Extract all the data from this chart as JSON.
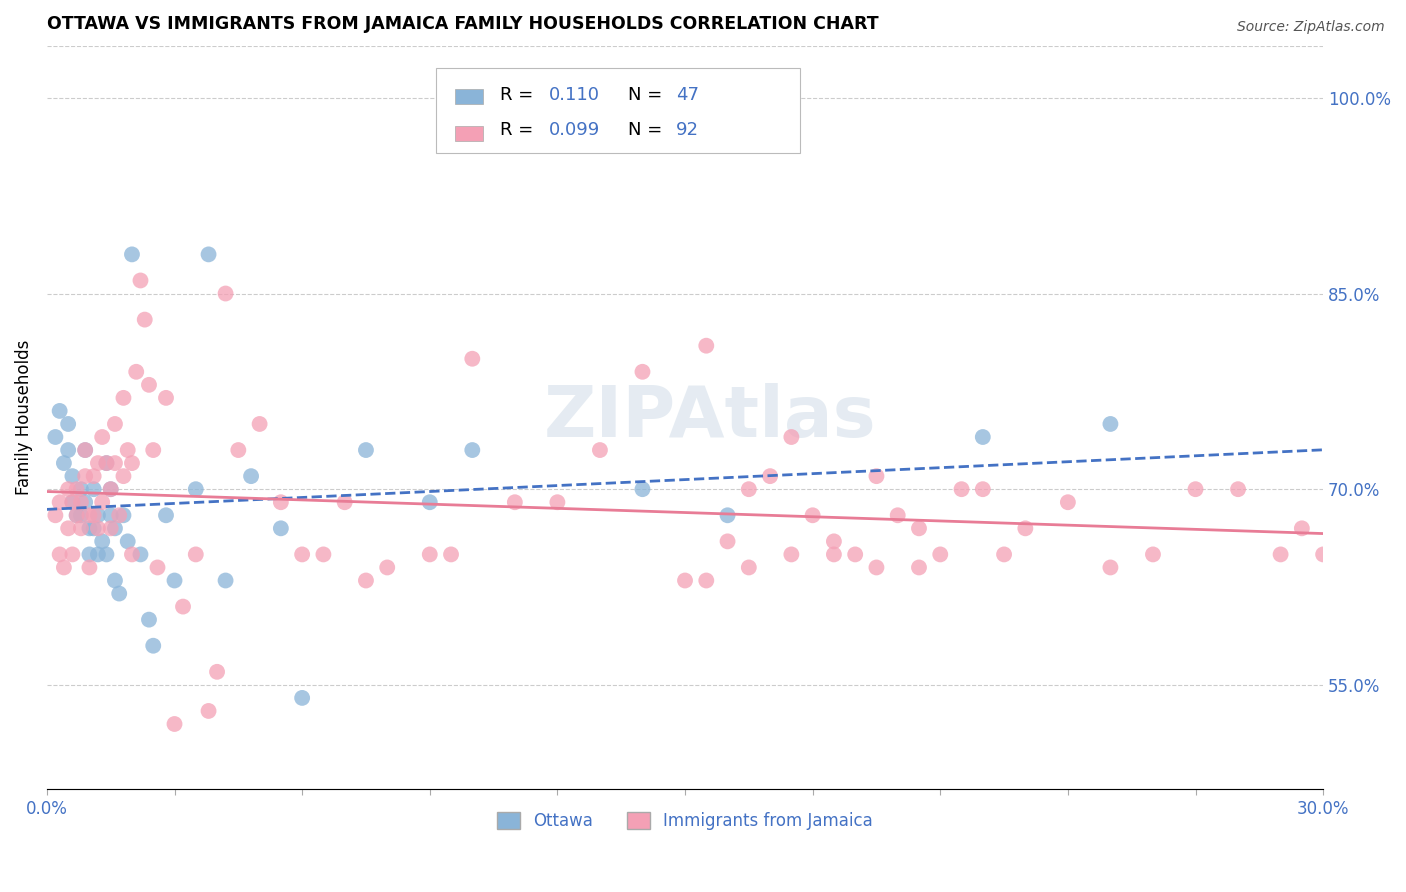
{
  "title": "OTTAWA VS IMMIGRANTS FROM JAMAICA FAMILY HOUSEHOLDS CORRELATION CHART",
  "source": "Source: ZipAtlas.com",
  "ylabel": "Family Households",
  "ylabel_right_ticks": [
    "55.0%",
    "70.0%",
    "85.0%",
    "100.0%"
  ],
  "ylabel_right_values": [
    0.55,
    0.7,
    0.85,
    1.0
  ],
  "xlim": [
    0.0,
    0.3
  ],
  "ylim": [
    0.47,
    1.04
  ],
  "watermark": "ZIPAtlas",
  "color_ottawa": "#8ab4d8",
  "color_jamaica": "#f4a0b5",
  "color_blue_text": "#4472c4",
  "color_pink_line": "#e87c96",
  "background_color": "#ffffff",
  "ottawa_x": [
    0.002,
    0.003,
    0.004,
    0.005,
    0.005,
    0.006,
    0.006,
    0.007,
    0.008,
    0.008,
    0.009,
    0.009,
    0.01,
    0.01,
    0.011,
    0.011,
    0.012,
    0.012,
    0.013,
    0.014,
    0.014,
    0.015,
    0.015,
    0.016,
    0.016,
    0.017,
    0.018,
    0.019,
    0.02,
    0.022,
    0.024,
    0.025,
    0.028,
    0.03,
    0.035,
    0.038,
    0.042,
    0.048,
    0.055,
    0.06,
    0.075,
    0.09,
    0.1,
    0.14,
    0.16,
    0.22,
    0.25
  ],
  "ottawa_y": [
    0.74,
    0.76,
    0.72,
    0.75,
    0.73,
    0.69,
    0.71,
    0.68,
    0.7,
    0.68,
    0.73,
    0.69,
    0.67,
    0.65,
    0.7,
    0.67,
    0.65,
    0.68,
    0.66,
    0.65,
    0.72,
    0.7,
    0.68,
    0.63,
    0.67,
    0.62,
    0.68,
    0.66,
    0.88,
    0.65,
    0.6,
    0.58,
    0.68,
    0.63,
    0.7,
    0.88,
    0.63,
    0.71,
    0.67,
    0.54,
    0.73,
    0.69,
    0.73,
    0.7,
    0.68,
    0.74,
    0.75
  ],
  "jamaica_x": [
    0.002,
    0.003,
    0.003,
    0.004,
    0.005,
    0.005,
    0.006,
    0.006,
    0.007,
    0.007,
    0.008,
    0.008,
    0.009,
    0.009,
    0.01,
    0.01,
    0.011,
    0.011,
    0.012,
    0.012,
    0.013,
    0.013,
    0.014,
    0.015,
    0.015,
    0.016,
    0.016,
    0.017,
    0.018,
    0.018,
    0.019,
    0.02,
    0.02,
    0.021,
    0.022,
    0.023,
    0.024,
    0.025,
    0.026,
    0.028,
    0.03,
    0.032,
    0.035,
    0.038,
    0.04,
    0.042,
    0.045,
    0.05,
    0.055,
    0.06,
    0.065,
    0.07,
    0.075,
    0.08,
    0.09,
    0.095,
    0.1,
    0.11,
    0.12,
    0.13,
    0.14,
    0.15,
    0.155,
    0.16,
    0.165,
    0.17,
    0.175,
    0.18,
    0.185,
    0.19,
    0.195,
    0.2,
    0.205,
    0.21,
    0.215,
    0.22,
    0.225,
    0.23,
    0.24,
    0.25,
    0.26,
    0.27,
    0.28,
    0.29,
    0.295,
    0.3,
    0.155,
    0.165,
    0.175,
    0.185,
    0.195,
    0.205
  ],
  "jamaica_y": [
    0.68,
    0.69,
    0.65,
    0.64,
    0.67,
    0.7,
    0.69,
    0.65,
    0.68,
    0.7,
    0.67,
    0.69,
    0.71,
    0.73,
    0.68,
    0.64,
    0.68,
    0.71,
    0.67,
    0.72,
    0.74,
    0.69,
    0.72,
    0.7,
    0.67,
    0.75,
    0.72,
    0.68,
    0.71,
    0.77,
    0.73,
    0.72,
    0.65,
    0.79,
    0.86,
    0.83,
    0.78,
    0.73,
    0.64,
    0.77,
    0.52,
    0.61,
    0.65,
    0.53,
    0.56,
    0.85,
    0.73,
    0.75,
    0.69,
    0.65,
    0.65,
    0.69,
    0.63,
    0.64,
    0.65,
    0.65,
    0.8,
    0.69,
    0.69,
    0.73,
    0.79,
    0.63,
    0.81,
    0.66,
    0.7,
    0.71,
    0.74,
    0.68,
    0.65,
    0.65,
    0.71,
    0.68,
    0.64,
    0.65,
    0.7,
    0.7,
    0.65,
    0.67,
    0.69,
    0.64,
    0.65,
    0.7,
    0.7,
    0.65,
    0.67,
    0.65,
    0.63,
    0.64,
    0.65,
    0.66,
    0.64,
    0.67
  ]
}
